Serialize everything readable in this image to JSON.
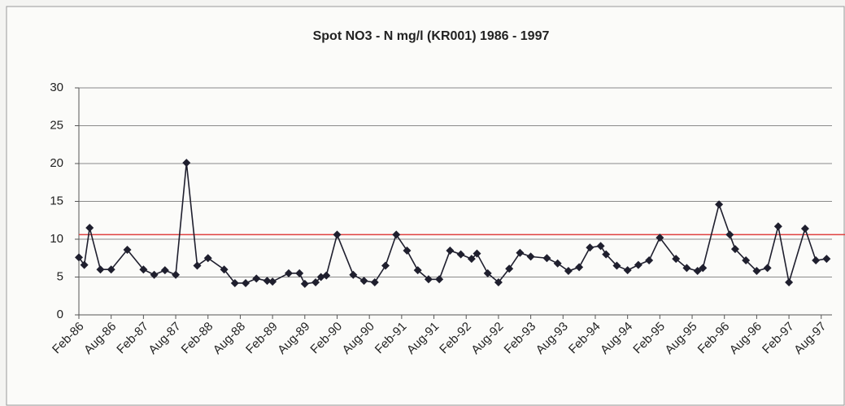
{
  "chart_data": {
    "type": "line",
    "title": "Spot NO3 - N mg/l (KR001) 1986 - 1997",
    "x": [
      "1986-02",
      "1986-03",
      "1986-04",
      "1986-06",
      "1986-08",
      "1986-11",
      "1987-02",
      "1987-04",
      "1987-06",
      "1987-08",
      "1987-10",
      "1987-12",
      "1988-02",
      "1988-05",
      "1988-07",
      "1988-09",
      "1988-11",
      "1989-01",
      "1989-02",
      "1989-05",
      "1989-07",
      "1989-08",
      "1989-10",
      "1989-11",
      "1989-12",
      "1990-02",
      "1990-05",
      "1990-07",
      "1990-09",
      "1990-11",
      "1991-01",
      "1991-03",
      "1991-05",
      "1991-07",
      "1991-09",
      "1991-11",
      "1992-01",
      "1992-03",
      "1992-04",
      "1992-06",
      "1992-08",
      "1992-10",
      "1992-12",
      "1993-02",
      "1993-05",
      "1993-07",
      "1993-09",
      "1993-11",
      "1994-01",
      "1994-03",
      "1994-04",
      "1994-06",
      "1994-08",
      "1994-10",
      "1994-12",
      "1995-02",
      "1995-05",
      "1995-07",
      "1995-09",
      "1995-10",
      "1996-01",
      "1996-03",
      "1996-04",
      "1996-06",
      "1996-08",
      "1996-10",
      "1996-12",
      "1997-02",
      "1997-05",
      "1997-07",
      "1997-09"
    ],
    "series": [
      {
        "name": "NO3-N",
        "color": "#1f1f2e",
        "values": [
          7.6,
          6.6,
          11.5,
          6.0,
          6.0,
          8.6,
          6.0,
          5.3,
          5.9,
          5.3,
          20.1,
          6.5,
          7.5,
          6.0,
          4.2,
          4.2,
          4.8,
          4.5,
          4.4,
          5.5,
          5.5,
          4.1,
          4.3,
          5.0,
          5.2,
          10.6,
          5.3,
          4.5,
          4.3,
          6.5,
          10.6,
          8.5,
          5.9,
          4.7,
          4.7,
          8.5,
          8.0,
          7.4,
          8.1,
          5.5,
          4.3,
          6.1,
          8.2,
          7.7,
          7.5,
          6.8,
          5.8,
          6.3,
          8.9,
          9.1,
          8.0,
          6.5,
          5.9,
          6.6,
          7.2,
          10.2,
          7.4,
          6.2,
          5.8,
          6.2,
          14.6,
          10.6,
          8.7,
          7.2,
          5.8,
          6.2,
          11.7,
          4.3,
          11.4,
          7.2,
          7.4
        ]
      }
    ],
    "reference_line": {
      "value": 10.6,
      "color": "#e04040"
    },
    "xlim": [
      "1986-02",
      "1997-10"
    ],
    "xticks": [
      {
        "value": "1986-02",
        "label": "Feb-86"
      },
      {
        "value": "1986-08",
        "label": "Aug-86"
      },
      {
        "value": "1987-02",
        "label": "Feb-87"
      },
      {
        "value": "1987-08",
        "label": "Aug-87"
      },
      {
        "value": "1988-02",
        "label": "Feb-88"
      },
      {
        "value": "1988-08",
        "label": "Aug-88"
      },
      {
        "value": "1989-02",
        "label": "Feb-89"
      },
      {
        "value": "1989-08",
        "label": "Aug-89"
      },
      {
        "value": "1990-02",
        "label": "Feb-90"
      },
      {
        "value": "1990-08",
        "label": "Aug-90"
      },
      {
        "value": "1991-02",
        "label": "Feb-91"
      },
      {
        "value": "1991-08",
        "label": "Aug-91"
      },
      {
        "value": "1992-02",
        "label": "Feb-92"
      },
      {
        "value": "1992-08",
        "label": "Aug-92"
      },
      {
        "value": "1993-02",
        "label": "Feb-93"
      },
      {
        "value": "1993-08",
        "label": "Aug-93"
      },
      {
        "value": "1994-02",
        "label": "Feb-94"
      },
      {
        "value": "1994-08",
        "label": "Aug-94"
      },
      {
        "value": "1995-02",
        "label": "Feb-95"
      },
      {
        "value": "1995-08",
        "label": "Aug-95"
      },
      {
        "value": "1996-02",
        "label": "Feb-96"
      },
      {
        "value": "1996-08",
        "label": "Aug-96"
      },
      {
        "value": "1997-02",
        "label": "Feb-97"
      },
      {
        "value": "1997-08",
        "label": "Aug-97"
      }
    ],
    "ylim": [
      0,
      30
    ],
    "yticks": [
      0,
      5,
      10,
      15,
      20,
      25,
      30
    ],
    "grid": true
  }
}
